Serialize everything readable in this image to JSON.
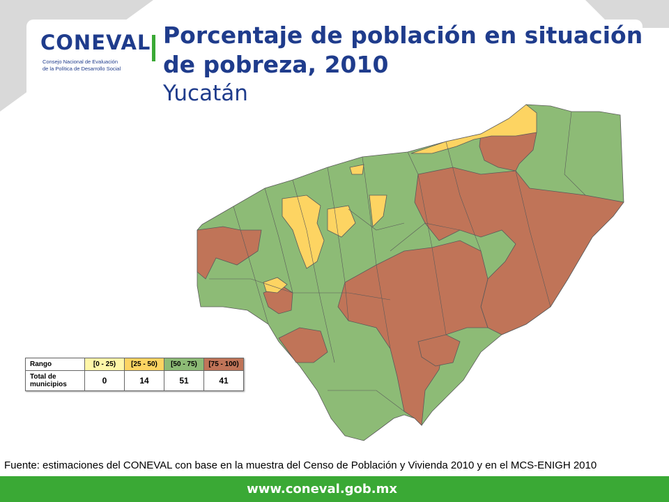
{
  "header": {
    "logo_word": "CONEVAL",
    "logo_tagline_1": "Consejo Nacional de Evaluación",
    "logo_tagline_2": "de la Política de Desarrollo Social",
    "title": "Porcentaje de población en situación de pobreza, 2010",
    "subtitle": "Yucatán"
  },
  "colors": {
    "navy": "#1f3c8c",
    "green_brand": "#3aa935",
    "class_0_25": "#fff6a8",
    "class_25_50": "#fdd462",
    "class_50_75": "#8dbb76",
    "class_75_100": "#c07458"
  },
  "legend": {
    "row1_label": "Rango",
    "row2_label": "Total de municipios",
    "classes": [
      {
        "range": "[0 - 25)",
        "count": "0",
        "color": "#fff6a8"
      },
      {
        "range": "[25 - 50)",
        "count": "14",
        "color": "#fdd462"
      },
      {
        "range": "[50 - 75)",
        "count": "51",
        "color": "#8dbb76"
      },
      {
        "range": "[75 - 100)",
        "count": "41",
        "color": "#c07458"
      }
    ]
  },
  "source": "Fuente: estimaciones del CONEVAL con base en la muestra del Censo de Población y Vivienda 2010 y en el MCS-ENIGH 2010",
  "footer": {
    "url": "www.coneval.gob.mx"
  }
}
